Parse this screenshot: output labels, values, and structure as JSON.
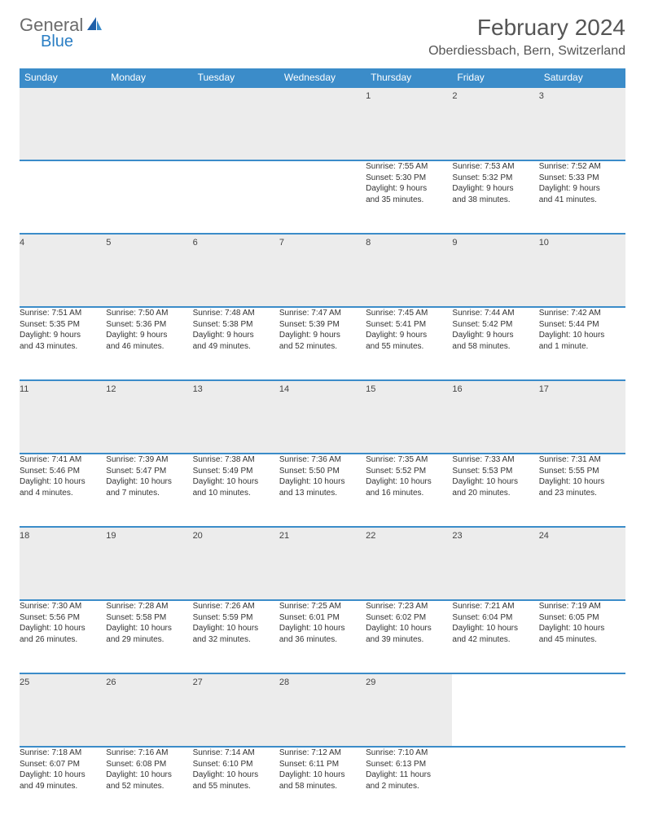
{
  "logo": {
    "text1": "General",
    "text2": "Blue"
  },
  "title": "February 2024",
  "location": "Oberdiessbach, Bern, Switzerland",
  "colors": {
    "header_bg": "#3b8cc9",
    "header_text": "#ffffff",
    "daynum_bg": "#ececec",
    "border": "#3b8cc9",
    "logo_gray": "#6b6b6b",
    "logo_blue": "#2a7ec4"
  },
  "weekdays": [
    "Sunday",
    "Monday",
    "Tuesday",
    "Wednesday",
    "Thursday",
    "Friday",
    "Saturday"
  ],
  "weeks": [
    [
      null,
      null,
      null,
      null,
      {
        "n": "1",
        "sunrise": "Sunrise: 7:55 AM",
        "sunset": "Sunset: 5:30 PM",
        "day1": "Daylight: 9 hours",
        "day2": "and 35 minutes."
      },
      {
        "n": "2",
        "sunrise": "Sunrise: 7:53 AM",
        "sunset": "Sunset: 5:32 PM",
        "day1": "Daylight: 9 hours",
        "day2": "and 38 minutes."
      },
      {
        "n": "3",
        "sunrise": "Sunrise: 7:52 AM",
        "sunset": "Sunset: 5:33 PM",
        "day1": "Daylight: 9 hours",
        "day2": "and 41 minutes."
      }
    ],
    [
      {
        "n": "4",
        "sunrise": "Sunrise: 7:51 AM",
        "sunset": "Sunset: 5:35 PM",
        "day1": "Daylight: 9 hours",
        "day2": "and 43 minutes."
      },
      {
        "n": "5",
        "sunrise": "Sunrise: 7:50 AM",
        "sunset": "Sunset: 5:36 PM",
        "day1": "Daylight: 9 hours",
        "day2": "and 46 minutes."
      },
      {
        "n": "6",
        "sunrise": "Sunrise: 7:48 AM",
        "sunset": "Sunset: 5:38 PM",
        "day1": "Daylight: 9 hours",
        "day2": "and 49 minutes."
      },
      {
        "n": "7",
        "sunrise": "Sunrise: 7:47 AM",
        "sunset": "Sunset: 5:39 PM",
        "day1": "Daylight: 9 hours",
        "day2": "and 52 minutes."
      },
      {
        "n": "8",
        "sunrise": "Sunrise: 7:45 AM",
        "sunset": "Sunset: 5:41 PM",
        "day1": "Daylight: 9 hours",
        "day2": "and 55 minutes."
      },
      {
        "n": "9",
        "sunrise": "Sunrise: 7:44 AM",
        "sunset": "Sunset: 5:42 PM",
        "day1": "Daylight: 9 hours",
        "day2": "and 58 minutes."
      },
      {
        "n": "10",
        "sunrise": "Sunrise: 7:42 AM",
        "sunset": "Sunset: 5:44 PM",
        "day1": "Daylight: 10 hours",
        "day2": "and 1 minute."
      }
    ],
    [
      {
        "n": "11",
        "sunrise": "Sunrise: 7:41 AM",
        "sunset": "Sunset: 5:46 PM",
        "day1": "Daylight: 10 hours",
        "day2": "and 4 minutes."
      },
      {
        "n": "12",
        "sunrise": "Sunrise: 7:39 AM",
        "sunset": "Sunset: 5:47 PM",
        "day1": "Daylight: 10 hours",
        "day2": "and 7 minutes."
      },
      {
        "n": "13",
        "sunrise": "Sunrise: 7:38 AM",
        "sunset": "Sunset: 5:49 PM",
        "day1": "Daylight: 10 hours",
        "day2": "and 10 minutes."
      },
      {
        "n": "14",
        "sunrise": "Sunrise: 7:36 AM",
        "sunset": "Sunset: 5:50 PM",
        "day1": "Daylight: 10 hours",
        "day2": "and 13 minutes."
      },
      {
        "n": "15",
        "sunrise": "Sunrise: 7:35 AM",
        "sunset": "Sunset: 5:52 PM",
        "day1": "Daylight: 10 hours",
        "day2": "and 16 minutes."
      },
      {
        "n": "16",
        "sunrise": "Sunrise: 7:33 AM",
        "sunset": "Sunset: 5:53 PM",
        "day1": "Daylight: 10 hours",
        "day2": "and 20 minutes."
      },
      {
        "n": "17",
        "sunrise": "Sunrise: 7:31 AM",
        "sunset": "Sunset: 5:55 PM",
        "day1": "Daylight: 10 hours",
        "day2": "and 23 minutes."
      }
    ],
    [
      {
        "n": "18",
        "sunrise": "Sunrise: 7:30 AM",
        "sunset": "Sunset: 5:56 PM",
        "day1": "Daylight: 10 hours",
        "day2": "and 26 minutes."
      },
      {
        "n": "19",
        "sunrise": "Sunrise: 7:28 AM",
        "sunset": "Sunset: 5:58 PM",
        "day1": "Daylight: 10 hours",
        "day2": "and 29 minutes."
      },
      {
        "n": "20",
        "sunrise": "Sunrise: 7:26 AM",
        "sunset": "Sunset: 5:59 PM",
        "day1": "Daylight: 10 hours",
        "day2": "and 32 minutes."
      },
      {
        "n": "21",
        "sunrise": "Sunrise: 7:25 AM",
        "sunset": "Sunset: 6:01 PM",
        "day1": "Daylight: 10 hours",
        "day2": "and 36 minutes."
      },
      {
        "n": "22",
        "sunrise": "Sunrise: 7:23 AM",
        "sunset": "Sunset: 6:02 PM",
        "day1": "Daylight: 10 hours",
        "day2": "and 39 minutes."
      },
      {
        "n": "23",
        "sunrise": "Sunrise: 7:21 AM",
        "sunset": "Sunset: 6:04 PM",
        "day1": "Daylight: 10 hours",
        "day2": "and 42 minutes."
      },
      {
        "n": "24",
        "sunrise": "Sunrise: 7:19 AM",
        "sunset": "Sunset: 6:05 PM",
        "day1": "Daylight: 10 hours",
        "day2": "and 45 minutes."
      }
    ],
    [
      {
        "n": "25",
        "sunrise": "Sunrise: 7:18 AM",
        "sunset": "Sunset: 6:07 PM",
        "day1": "Daylight: 10 hours",
        "day2": "and 49 minutes."
      },
      {
        "n": "26",
        "sunrise": "Sunrise: 7:16 AM",
        "sunset": "Sunset: 6:08 PM",
        "day1": "Daylight: 10 hours",
        "day2": "and 52 minutes."
      },
      {
        "n": "27",
        "sunrise": "Sunrise: 7:14 AM",
        "sunset": "Sunset: 6:10 PM",
        "day1": "Daylight: 10 hours",
        "day2": "and 55 minutes."
      },
      {
        "n": "28",
        "sunrise": "Sunrise: 7:12 AM",
        "sunset": "Sunset: 6:11 PM",
        "day1": "Daylight: 10 hours",
        "day2": "and 58 minutes."
      },
      {
        "n": "29",
        "sunrise": "Sunrise: 7:10 AM",
        "sunset": "Sunset: 6:13 PM",
        "day1": "Daylight: 11 hours",
        "day2": "and 2 minutes."
      },
      null,
      null
    ]
  ]
}
